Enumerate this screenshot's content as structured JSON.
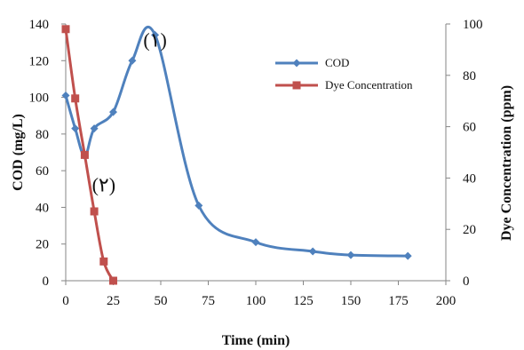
{
  "chart_data": {
    "type": "line",
    "xlabel": "Time (min)",
    "ylabel_left": "COD (mg/L)",
    "ylabel_right": "Dye Concentration (ppm)",
    "xlim": [
      0,
      200
    ],
    "ylim_left": [
      0,
      140
    ],
    "ylim_right": [
      0,
      100
    ],
    "x_ticks": [
      "0",
      "25",
      "50",
      "75",
      "100",
      "125",
      "150",
      "175",
      "200"
    ],
    "y_left_ticks": [
      "0",
      "20",
      "40",
      "60",
      "80",
      "100",
      "120",
      "140"
    ],
    "y_right_ticks": [
      "0",
      "20",
      "40",
      "60",
      "80",
      "100"
    ],
    "grid": false,
    "legend_position": "top-right",
    "series": [
      {
        "name": "COD",
        "axis": "left",
        "color": "#4f81bd",
        "marker": "diamond",
        "x": [
          0,
          5,
          10,
          15,
          25,
          35,
          47,
          70,
          100,
          130,
          150,
          180
        ],
        "y": [
          101,
          83,
          68,
          83,
          92,
          120,
          134,
          41,
          21,
          16,
          14,
          13.5
        ]
      },
      {
        "name": "Dye Concentration",
        "axis": "right",
        "color": "#c0504d",
        "marker": "square",
        "x": [
          0,
          5,
          10,
          15,
          20,
          25
        ],
        "y": [
          98,
          71,
          49,
          27,
          7.5,
          0
        ]
      }
    ],
    "annotations": [
      {
        "text": "(۱)",
        "x": 47,
        "y": 134,
        "axis": "left"
      },
      {
        "text": "(۲)",
        "x": 20,
        "y": 55,
        "axis": "left"
      }
    ]
  }
}
